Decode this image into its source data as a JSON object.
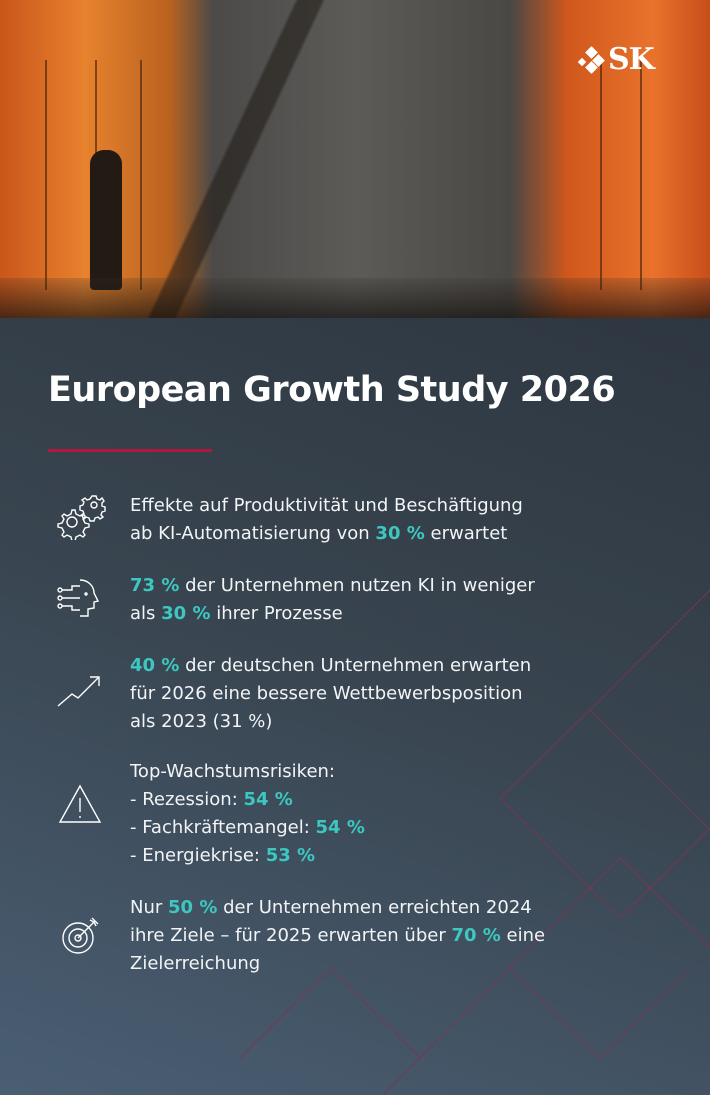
{
  "logo": {
    "text": "SK"
  },
  "title": "European Growth Study 2026",
  "colors": {
    "accent": "#3cc8c0",
    "rule": "#b0183c",
    "background": "#38444f"
  },
  "items": [
    {
      "icon": "gears-icon",
      "parts": [
        {
          "t": "Effekte auf Produktivität und Beschäftigung"
        },
        {
          "br": true
        },
        {
          "t": "ab KI-Automatisierung von "
        },
        {
          "h": "30 %"
        },
        {
          "t": " erwartet"
        }
      ]
    },
    {
      "icon": "ai-head-icon",
      "parts": [
        {
          "h": "73 %"
        },
        {
          "t": " der Unternehmen nutzen KI in weniger"
        },
        {
          "br": true
        },
        {
          "t": "als "
        },
        {
          "h": "30 %"
        },
        {
          "t": " ihrer Prozesse"
        }
      ]
    },
    {
      "icon": "trend-up-icon",
      "parts": [
        {
          "h": "40 %"
        },
        {
          "t": " der deutschen Unternehmen erwarten"
        },
        {
          "br": true
        },
        {
          "t": "für 2026 eine bessere Wettbewerbsposition"
        },
        {
          "br": true
        },
        {
          "t": "als 2023 (31 %)"
        }
      ]
    },
    {
      "icon": "warning-icon",
      "parts": [
        {
          "t": "Top-Wachstumsrisiken:"
        },
        {
          "br": true
        },
        {
          "t": "- Rezession: "
        },
        {
          "h": "54 %"
        },
        {
          "br": true
        },
        {
          "t": "- Fachkräftemangel: "
        },
        {
          "h": "54 %"
        },
        {
          "br": true
        },
        {
          "t": "- Energiekrise: "
        },
        {
          "h": "53 %"
        }
      ]
    },
    {
      "icon": "target-icon",
      "parts": [
        {
          "t": "Nur "
        },
        {
          "h": "50 %"
        },
        {
          "t": " der Unternehmen erreichten 2024"
        },
        {
          "br": true
        },
        {
          "t": "ihre Ziele – für 2025 erwarten über "
        },
        {
          "h": "70 %"
        },
        {
          "t": " eine"
        },
        {
          "br": true
        },
        {
          "t": "Zielerreichung"
        }
      ]
    }
  ]
}
